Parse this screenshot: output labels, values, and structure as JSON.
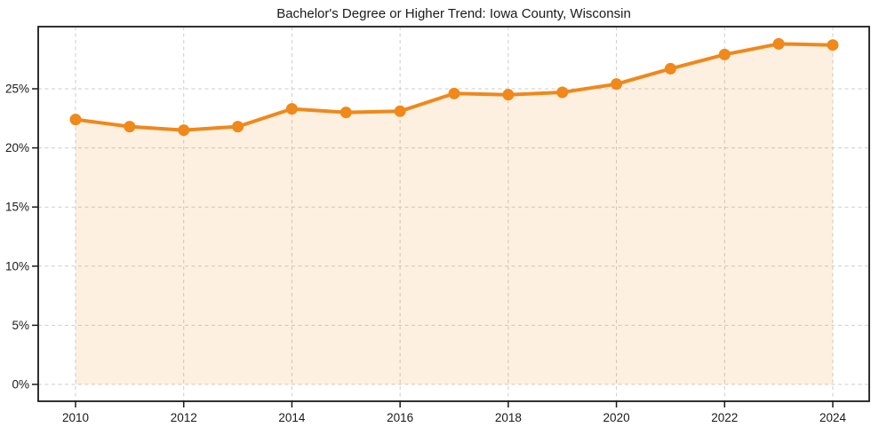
{
  "title": "Bachelor's Degree or Higher Trend: Iowa County, Wisconsin",
  "chart_data": {
    "type": "line",
    "title": "Bachelor's Degree or Higher Trend: Iowa County, Wisconsin",
    "xlabel": "",
    "ylabel": "",
    "x": [
      2010,
      2011,
      2012,
      2013,
      2014,
      2015,
      2016,
      2017,
      2018,
      2019,
      2020,
      2021,
      2022,
      2023,
      2024
    ],
    "series": [
      {
        "name": "Bachelor's degree or higher (%)",
        "values": [
          22.4,
          21.8,
          21.5,
          21.8,
          23.3,
          23.0,
          23.1,
          24.6,
          24.5,
          24.7,
          25.4,
          26.7,
          27.9,
          28.8,
          28.7
        ]
      }
    ],
    "xticks": {
      "values": [
        2010,
        2012,
        2014,
        2016,
        2018,
        2020,
        2022,
        2024
      ],
      "labels": [
        "2010",
        "2012",
        "2014",
        "2016",
        "2018",
        "2020",
        "2022",
        "2024"
      ]
    },
    "yticks": {
      "values": [
        0,
        5,
        10,
        15,
        20,
        25
      ],
      "labels": [
        "0%",
        "5%",
        "10%",
        "15%",
        "20%",
        "25%"
      ]
    },
    "xlim": [
      2009.3,
      2024.7
    ],
    "ylim": [
      -1.5,
      30.3
    ],
    "grid": true,
    "grid_style": "dashed",
    "legend": false,
    "marker": "circle",
    "area_fill": true,
    "colors": {
      "line": "#f0881a",
      "marker": "#f0881a",
      "fill": "#f0881a",
      "fill_opacity": 0.13,
      "grid": "#cdcdcd",
      "spine": "#1a1a1a",
      "tick_label": "#1a1a1a",
      "title": "#1a1a1a",
      "background": "#ffffff"
    }
  }
}
